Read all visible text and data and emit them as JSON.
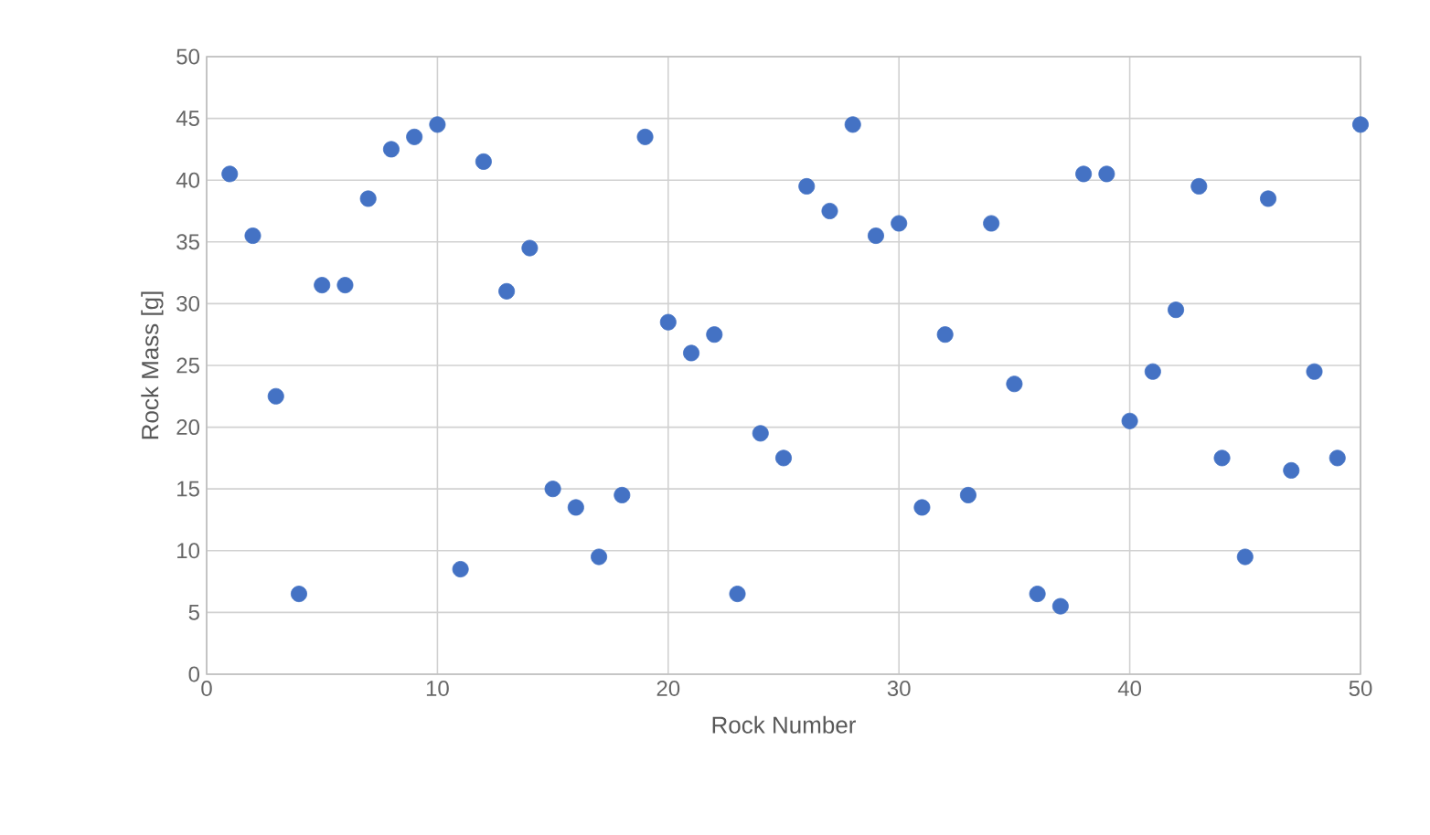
{
  "chart_data": {
    "type": "scatter",
    "xlabel": "Rock Number",
    "ylabel": "Rock Mass [g]",
    "x": [
      1,
      2,
      3,
      4,
      5,
      6,
      7,
      8,
      9,
      10,
      11,
      12,
      13,
      14,
      15,
      16,
      17,
      18,
      19,
      20,
      21,
      22,
      23,
      24,
      25,
      26,
      27,
      28,
      29,
      30,
      31,
      32,
      33,
      34,
      35,
      36,
      37,
      38,
      39,
      40,
      41,
      42,
      43,
      44,
      45,
      46,
      47,
      48,
      49,
      50
    ],
    "values": [
      40.5,
      35.5,
      22.5,
      6.5,
      31.5,
      31.5,
      38.5,
      42.5,
      43.5,
      44.5,
      8.5,
      41.5,
      31,
      34.5,
      15,
      13.5,
      9.5,
      14.5,
      43.5,
      28.5,
      26,
      27.5,
      6.5,
      19.5,
      17.5,
      39.5,
      37.5,
      44.5,
      35.5,
      36.5,
      13.5,
      27.5,
      14.5,
      36.5,
      23.5,
      6.5,
      5.5,
      40.5,
      40.5,
      20.5,
      24.5,
      29.5,
      39.5,
      17.5,
      9.5,
      38.5,
      16.5,
      24.5,
      17.5,
      44.5
    ],
    "color": "#4472c4",
    "marker": "circle",
    "xlim": [
      0,
      50
    ],
    "xticks": [
      0,
      10,
      20,
      30,
      40,
      50
    ],
    "ylim": [
      0,
      50
    ],
    "yticks": [
      0,
      5,
      10,
      15,
      20,
      25,
      30,
      35,
      40,
      45,
      50
    ],
    "grid": true
  }
}
